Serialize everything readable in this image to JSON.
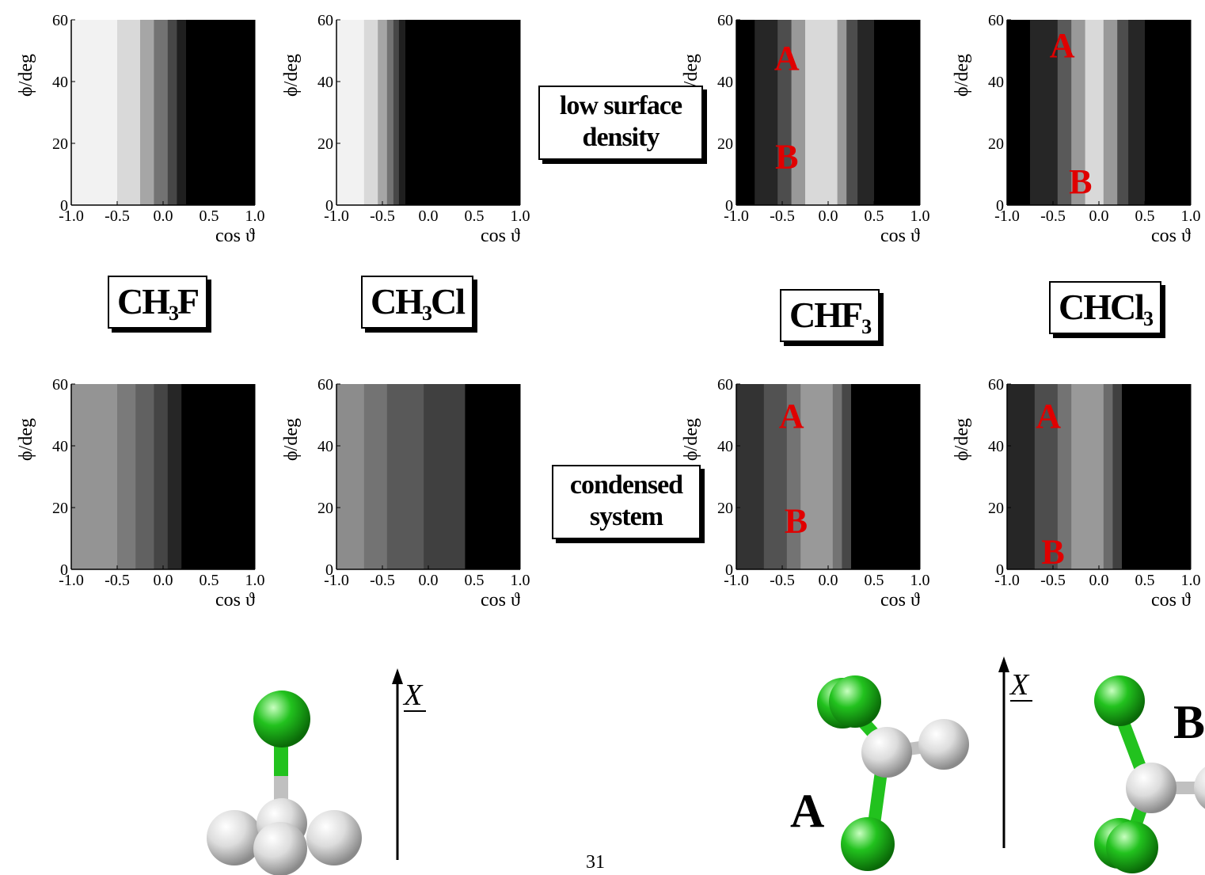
{
  "chart_data": [
    {
      "type": "heatmap",
      "id": "ch3f_low",
      "title": "",
      "xlabel": "cos ϑ",
      "ylabel": "ϕ/deg",
      "xlim": [
        -1.0,
        1.0
      ],
      "ylim": [
        0,
        60
      ],
      "x_ticks": [
        "-1.0",
        "-0.5",
        "0.0",
        "0.5",
        "1.0"
      ],
      "y_ticks": [
        "0",
        "20",
        "40",
        "60"
      ],
      "x": [
        -1.0,
        -0.5,
        -0.25,
        -0.1,
        0.05,
        0.15,
        0.25,
        1.0
      ],
      "levels": [
        0.95,
        0.85,
        0.65,
        0.45,
        0.28,
        0.12,
        0.0
      ],
      "marks": []
    },
    {
      "type": "heatmap",
      "id": "ch3cl_low",
      "title": "",
      "xlabel": "cos ϑ",
      "ylabel": "ϕ/deg",
      "xlim": [
        -1.0,
        1.0
      ],
      "ylim": [
        0,
        60
      ],
      "x_ticks": [
        "-1.0",
        "-0.5",
        "0.0",
        "0.5",
        "1.0"
      ],
      "y_ticks": [
        "0",
        "20",
        "40",
        "60"
      ],
      "x": [
        -1.0,
        -0.7,
        -0.55,
        -0.45,
        -0.38,
        -0.32,
        -0.25,
        1.0
      ],
      "levels": [
        0.95,
        0.85,
        0.65,
        0.45,
        0.28,
        0.12,
        0.0
      ],
      "marks": []
    },
    {
      "type": "heatmap",
      "id": "chf3_low",
      "title": "",
      "xlabel": "cos ϑ",
      "ylabel": "ϕ/deg",
      "xlim": [
        -1.0,
        1.0
      ],
      "ylim": [
        0,
        60
      ],
      "x_ticks": [
        "-1.0",
        "-0.5",
        "0.0",
        "0.5",
        "1.0"
      ],
      "y_ticks": [
        "0",
        "20",
        "40",
        "60"
      ],
      "x": [
        -1.0,
        -0.8,
        -0.55,
        -0.4,
        -0.25,
        0.1,
        0.2,
        0.32,
        0.5,
        1.0
      ],
      "levels": [
        0.0,
        0.15,
        0.3,
        0.6,
        0.85,
        0.6,
        0.3,
        0.15,
        0.0
      ],
      "marks": [
        {
          "label": "A",
          "x": -0.45,
          "y": 48
        },
        {
          "label": "B",
          "x": -0.45,
          "y": 16
        }
      ]
    },
    {
      "type": "heatmap",
      "id": "chcl3_low",
      "title": "",
      "xlabel": "cos ϑ",
      "ylabel": "ϕ/deg",
      "xlim": [
        -1.0,
        1.0
      ],
      "ylim": [
        0,
        60
      ],
      "x_ticks": [
        "-1.0",
        "-0.5",
        "0.0",
        "0.5",
        "1.0"
      ],
      "y_ticks": [
        "0",
        "20",
        "40",
        "60"
      ],
      "x": [
        -1.0,
        -0.75,
        -0.45,
        -0.3,
        -0.15,
        0.05,
        0.2,
        0.32,
        0.5,
        1.0
      ],
      "levels": [
        0.0,
        0.15,
        0.35,
        0.6,
        0.85,
        0.6,
        0.3,
        0.15,
        0.0
      ],
      "marks": [
        {
          "label": "A",
          "x": -0.4,
          "y": 52
        },
        {
          "label": "B",
          "x": -0.2,
          "y": 8
        }
      ]
    },
    {
      "type": "heatmap",
      "id": "ch3f_cond",
      "title": "",
      "xlabel": "cos ϑ",
      "ylabel": "ϕ/deg",
      "xlim": [
        -1.0,
        1.0
      ],
      "ylim": [
        0,
        60
      ],
      "x_ticks": [
        "-1.0",
        "-0.5",
        "0.0",
        "0.5",
        "1.0"
      ],
      "y_ticks": [
        "0",
        "20",
        "40",
        "60"
      ],
      "x": [
        -1.0,
        -0.5,
        -0.3,
        -0.1,
        0.05,
        0.2,
        1.0
      ],
      "levels": [
        0.58,
        0.48,
        0.38,
        0.27,
        0.15,
        0.0
      ],
      "marks": []
    },
    {
      "type": "heatmap",
      "id": "ch3cl_cond",
      "title": "",
      "xlabel": "cos ϑ",
      "ylabel": "ϕ/deg",
      "xlim": [
        -1.0,
        1.0
      ],
      "ylim": [
        0,
        60
      ],
      "x_ticks": [
        "-1.0",
        "-0.5",
        "0.0",
        "0.5",
        "1.0"
      ],
      "y_ticks": [
        "0",
        "20",
        "40",
        "60"
      ],
      "x": [
        -1.0,
        -0.7,
        -0.45,
        -0.05,
        0.4,
        1.0
      ],
      "levels": [
        0.55,
        0.45,
        0.35,
        0.25,
        0.0
      ],
      "marks": []
    },
    {
      "type": "heatmap",
      "id": "chf3_cond",
      "title": "",
      "xlabel": "cos ϑ",
      "ylabel": "ϕ/deg",
      "xlim": [
        -1.0,
        1.0
      ],
      "ylim": [
        0,
        60
      ],
      "x_ticks": [
        "-1.0",
        "-0.5",
        "0.0",
        "0.5",
        "1.0"
      ],
      "y_ticks": [
        "0",
        "20",
        "40",
        "60"
      ],
      "x": [
        -1.0,
        -0.7,
        -0.45,
        -0.3,
        0.05,
        0.15,
        0.25,
        1.0
      ],
      "levels": [
        0.2,
        0.32,
        0.45,
        0.6,
        0.45,
        0.28,
        0.0
      ],
      "marks": [
        {
          "label": "A",
          "x": -0.4,
          "y": 50
        },
        {
          "label": "B",
          "x": -0.35,
          "y": 16
        }
      ]
    },
    {
      "type": "heatmap",
      "id": "chcl3_cond",
      "title": "",
      "xlabel": "cos ϑ",
      "ylabel": "ϕ/deg",
      "xlim": [
        -1.0,
        1.0
      ],
      "ylim": [
        0,
        60
      ],
      "x_ticks": [
        "-1.0",
        "-0.5",
        "0.0",
        "0.5",
        "1.0"
      ],
      "y_ticks": [
        "0",
        "20",
        "40",
        "60"
      ],
      "x": [
        -1.0,
        -0.7,
        -0.45,
        -0.3,
        0.05,
        0.15,
        0.25,
        1.0
      ],
      "levels": [
        0.15,
        0.3,
        0.45,
        0.6,
        0.42,
        0.25,
        0.0
      ],
      "marks": [
        {
          "label": "A",
          "x": -0.55,
          "y": 50
        },
        {
          "label": "B",
          "x": -0.5,
          "y": 6
        }
      ]
    }
  ],
  "labels": {
    "low_surface_density": [
      "low surface",
      "density"
    ],
    "condensed_system": [
      "condensed",
      "system"
    ],
    "ch3f": {
      "main": "CH",
      "sub": "3",
      "tail": "F"
    },
    "ch3cl": {
      "main": "CH",
      "sub": "3",
      "tail": "Cl"
    },
    "chf3": {
      "main": "CHF",
      "sub": "3",
      "tail": ""
    },
    "chcl3": {
      "main": "HCl",
      "sub": "3",
      "tail": "",
      "prefix": "C"
    },
    "axis_x_label": "X",
    "orientation_a": "A",
    "orientation_b": "B",
    "page_number": "31"
  },
  "colors": {
    "fluorine_atom": "#22c21e",
    "carbon_atom": "#c8c8c8",
    "hydrogen_atom": "#e6e6e6",
    "marker_red": "#e00000"
  }
}
